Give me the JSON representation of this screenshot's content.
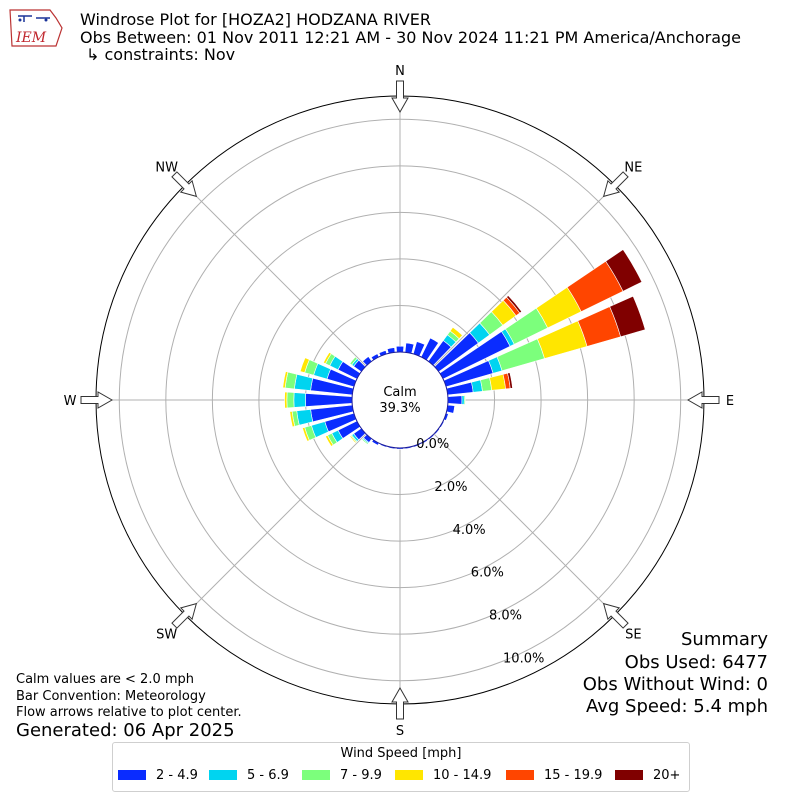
{
  "header": {
    "logo_text": "IEM",
    "title": "Windrose Plot for [HOZA2] HODZANA RIVER",
    "subtitle": "Obs Between: 01 Nov 2011 12:21 AM - 30 Nov 2024 11:21 PM America/Anchorage",
    "constraints": "↳ constraints: Nov"
  },
  "notes": {
    "calm_note": "Calm values are < 2.0 mph",
    "bar_convention": "Bar Convention: Meteorology",
    "flow_note": "Flow arrows relative to plot center.",
    "generated": "Generated: 06 Apr 2025"
  },
  "summary": {
    "title": "Summary",
    "obs_used": "Obs Used: 6477",
    "obs_without_wind": "Obs Without Wind: 0",
    "avg_speed": "Avg Speed: 5.4 mph"
  },
  "chart_data": {
    "type": "windrose",
    "calm_label": "Calm",
    "calm_value": "39.3%",
    "compass_labels": [
      "N",
      "NE",
      "E",
      "SE",
      "S",
      "SW",
      "W",
      "NW"
    ],
    "radial_ticks": [
      "0.0%",
      "2.0%",
      "4.0%",
      "6.0%",
      "8.0%",
      "10.0%"
    ],
    "radial_range": [
      0,
      11.0
    ],
    "legend_title": "Wind Speed [mph]",
    "speed_bins": [
      {
        "label": "2 - 4.9",
        "color": "#0a2cff"
      },
      {
        "label": "5 - 6.9",
        "color": "#00d4f0"
      },
      {
        "label": "7 - 9.9",
        "color": "#7cff7c"
      },
      {
        "label": "10 - 14.9",
        "color": "#ffe600"
      },
      {
        "label": "15 - 19.9",
        "color": "#ff4500"
      },
      {
        "label": "20+",
        "color": "#800000"
      }
    ],
    "directions": [
      0,
      10,
      20,
      30,
      40,
      50,
      60,
      70,
      80,
      90,
      100,
      110,
      120,
      130,
      140,
      150,
      160,
      170,
      180,
      190,
      200,
      210,
      220,
      230,
      240,
      250,
      260,
      270,
      280,
      290,
      300,
      310,
      320,
      330,
      340,
      350
    ],
    "cumulative_percent": [
      [
        0.25,
        0.25,
        0.25,
        0.25,
        0.25,
        0.25
      ],
      [
        0.4,
        0.4,
        0.4,
        0.4,
        0.4,
        0.4
      ],
      [
        0.55,
        0.55,
        0.55,
        0.55,
        0.55,
        0.55
      ],
      [
        0.9,
        0.9,
        0.9,
        0.9,
        0.9,
        0.9
      ],
      [
        1.1,
        1.4,
        1.6,
        1.8,
        1.8,
        1.8
      ],
      [
        2.1,
        2.7,
        3.4,
        4.1,
        4.3,
        4.4
      ],
      [
        3.2,
        3.4,
        5.0,
        6.6,
        8.6,
        9.5
      ],
      [
        2.1,
        2.5,
        4.4,
        6.3,
        7.8,
        8.9
      ],
      [
        1.1,
        1.5,
        1.9,
        2.5,
        2.7,
        2.8
      ],
      [
        0.6,
        0.7,
        0.75,
        0.75,
        0.75,
        0.75
      ],
      [
        0.3,
        0.3,
        0.3,
        0.3,
        0.3,
        0.3
      ],
      [
        0.1,
        0.1,
        0.1,
        0.1,
        0.1,
        0.1
      ],
      [
        0.05,
        0.05,
        0.05,
        0.05,
        0.05,
        0.05
      ],
      [
        0.05,
        0.05,
        0.05,
        0.05,
        0.05,
        0.05
      ],
      [
        0.05,
        0.05,
        0.05,
        0.05,
        0.05,
        0.05
      ],
      [
        0.05,
        0.05,
        0.05,
        0.05,
        0.05,
        0.05
      ],
      [
        0.05,
        0.05,
        0.05,
        0.05,
        0.05,
        0.05
      ],
      [
        0.05,
        0.05,
        0.05,
        0.05,
        0.05,
        0.05
      ],
      [
        0.05,
        0.05,
        0.05,
        0.05,
        0.05,
        0.05
      ],
      [
        0.05,
        0.05,
        0.05,
        0.05,
        0.05,
        0.05
      ],
      [
        0.05,
        0.05,
        0.05,
        0.05,
        0.05,
        0.05
      ],
      [
        0.1,
        0.1,
        0.1,
        0.1,
        0.1,
        0.1
      ],
      [
        0.2,
        0.25,
        0.3,
        0.3,
        0.3,
        0.3
      ],
      [
        0.4,
        0.5,
        0.55,
        0.6,
        0.6,
        0.6
      ],
      [
        0.9,
        1.2,
        1.4,
        1.5,
        1.5,
        1.5
      ],
      [
        1.3,
        1.9,
        2.2,
        2.3,
        2.3,
        2.3
      ],
      [
        1.8,
        2.4,
        2.6,
        2.7,
        2.7,
        2.7
      ],
      [
        2.0,
        2.5,
        2.8,
        2.9,
        2.9,
        2.9
      ],
      [
        1.8,
        2.5,
        2.9,
        3.0,
        3.0,
        3.0
      ],
      [
        1.2,
        1.8,
        2.2,
        2.4,
        2.4,
        2.4
      ],
      [
        0.9,
        1.3,
        1.5,
        1.6,
        1.6,
        1.6
      ],
      [
        0.4,
        0.5,
        0.6,
        0.6,
        0.6,
        0.6
      ],
      [
        0.25,
        0.25,
        0.25,
        0.25,
        0.25,
        0.25
      ],
      [
        0.15,
        0.15,
        0.15,
        0.15,
        0.15,
        0.15
      ],
      [
        0.15,
        0.15,
        0.15,
        0.15,
        0.15,
        0.15
      ],
      [
        0.2,
        0.2,
        0.2,
        0.2,
        0.2,
        0.2
      ]
    ]
  }
}
